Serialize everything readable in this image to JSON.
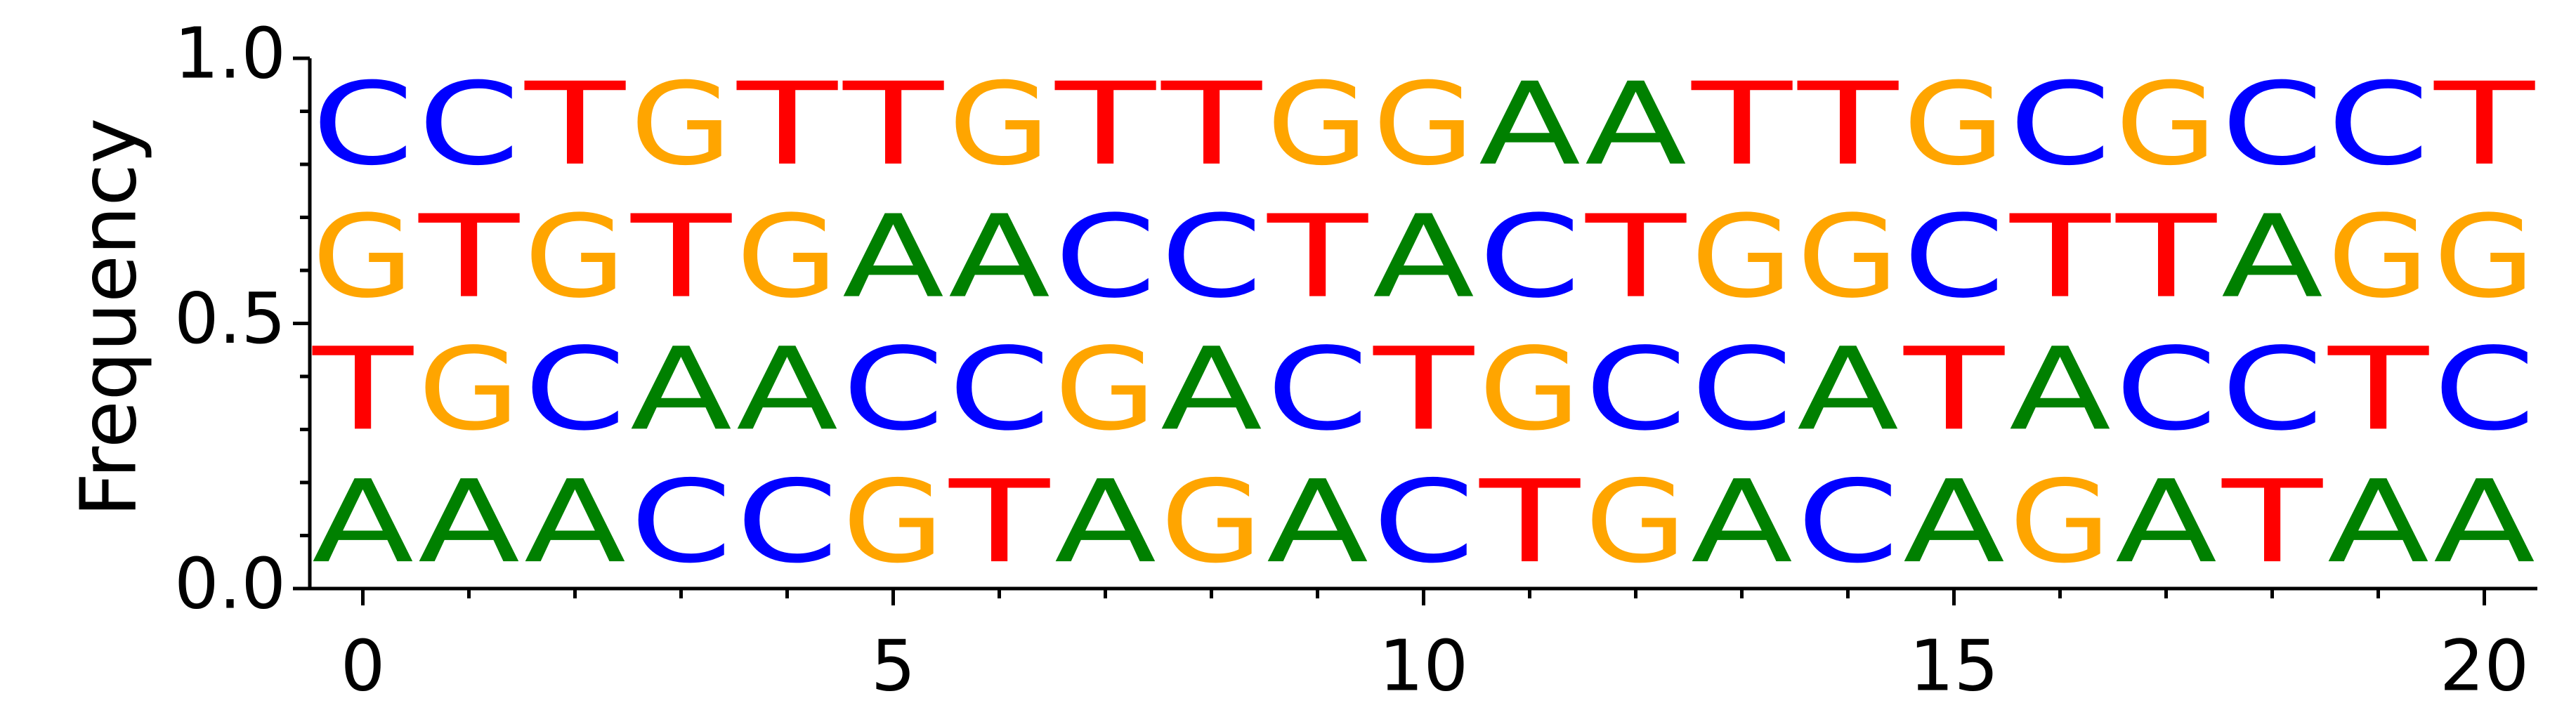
{
  "chart_data": {
    "type": "sequence-logo",
    "ylabel": "Frequency",
    "ylim": [
      0,
      1
    ],
    "xlim": [
      -0.5,
      20.5
    ],
    "y_ticks": [
      "0.0",
      "0.5",
      "1.0"
    ],
    "y_tick_values": [
      0,
      0.5,
      1
    ],
    "y_minor_tick_step": 0.1,
    "x_ticks": [
      "0",
      "5",
      "10",
      "15",
      "20"
    ],
    "x_tick_values": [
      0,
      5,
      10,
      15,
      20
    ],
    "x_minor_tick_step": 1,
    "colors": {
      "A": "#008000",
      "C": "#0000ff",
      "G": "#ffa500",
      "T": "#ff0000"
    },
    "positions": [
      {
        "x": 0,
        "stack": [
          {
            "base": "A",
            "freq": 0.25
          },
          {
            "base": "T",
            "freq": 0.25
          },
          {
            "base": "G",
            "freq": 0.25
          },
          {
            "base": "C",
            "freq": 0.25
          }
        ]
      },
      {
        "x": 1,
        "stack": [
          {
            "base": "A",
            "freq": 0.25
          },
          {
            "base": "G",
            "freq": 0.25
          },
          {
            "base": "T",
            "freq": 0.25
          },
          {
            "base": "C",
            "freq": 0.25
          }
        ]
      },
      {
        "x": 2,
        "stack": [
          {
            "base": "A",
            "freq": 0.25
          },
          {
            "base": "C",
            "freq": 0.25
          },
          {
            "base": "G",
            "freq": 0.25
          },
          {
            "base": "T",
            "freq": 0.25
          }
        ]
      },
      {
        "x": 3,
        "stack": [
          {
            "base": "C",
            "freq": 0.25
          },
          {
            "base": "A",
            "freq": 0.25
          },
          {
            "base": "T",
            "freq": 0.25
          },
          {
            "base": "G",
            "freq": 0.25
          }
        ]
      },
      {
        "x": 4,
        "stack": [
          {
            "base": "C",
            "freq": 0.25
          },
          {
            "base": "A",
            "freq": 0.25
          },
          {
            "base": "G",
            "freq": 0.25
          },
          {
            "base": "T",
            "freq": 0.25
          }
        ]
      },
      {
        "x": 5,
        "stack": [
          {
            "base": "G",
            "freq": 0.25
          },
          {
            "base": "C",
            "freq": 0.25
          },
          {
            "base": "A",
            "freq": 0.25
          },
          {
            "base": "T",
            "freq": 0.25
          }
        ]
      },
      {
        "x": 6,
        "stack": [
          {
            "base": "T",
            "freq": 0.25
          },
          {
            "base": "C",
            "freq": 0.25
          },
          {
            "base": "A",
            "freq": 0.25
          },
          {
            "base": "G",
            "freq": 0.25
          }
        ]
      },
      {
        "x": 7,
        "stack": [
          {
            "base": "A",
            "freq": 0.25
          },
          {
            "base": "G",
            "freq": 0.25
          },
          {
            "base": "C",
            "freq": 0.25
          },
          {
            "base": "T",
            "freq": 0.25
          }
        ]
      },
      {
        "x": 8,
        "stack": [
          {
            "base": "G",
            "freq": 0.25
          },
          {
            "base": "A",
            "freq": 0.25
          },
          {
            "base": "C",
            "freq": 0.25
          },
          {
            "base": "T",
            "freq": 0.25
          }
        ]
      },
      {
        "x": 9,
        "stack": [
          {
            "base": "A",
            "freq": 0.25
          },
          {
            "base": "C",
            "freq": 0.25
          },
          {
            "base": "T",
            "freq": 0.25
          },
          {
            "base": "G",
            "freq": 0.25
          }
        ]
      },
      {
        "x": 10,
        "stack": [
          {
            "base": "C",
            "freq": 0.25
          },
          {
            "base": "T",
            "freq": 0.25
          },
          {
            "base": "A",
            "freq": 0.25
          },
          {
            "base": "G",
            "freq": 0.25
          }
        ]
      },
      {
        "x": 11,
        "stack": [
          {
            "base": "T",
            "freq": 0.25
          },
          {
            "base": "G",
            "freq": 0.25
          },
          {
            "base": "C",
            "freq": 0.25
          },
          {
            "base": "A",
            "freq": 0.25
          }
        ]
      },
      {
        "x": 12,
        "stack": [
          {
            "base": "G",
            "freq": 0.25
          },
          {
            "base": "C",
            "freq": 0.25
          },
          {
            "base": "T",
            "freq": 0.25
          },
          {
            "base": "A",
            "freq": 0.25
          }
        ]
      },
      {
        "x": 13,
        "stack": [
          {
            "base": "A",
            "freq": 0.25
          },
          {
            "base": "C",
            "freq": 0.25
          },
          {
            "base": "G",
            "freq": 0.25
          },
          {
            "base": "T",
            "freq": 0.25
          }
        ]
      },
      {
        "x": 14,
        "stack": [
          {
            "base": "C",
            "freq": 0.25
          },
          {
            "base": "A",
            "freq": 0.25
          },
          {
            "base": "G",
            "freq": 0.25
          },
          {
            "base": "T",
            "freq": 0.25
          }
        ]
      },
      {
        "x": 15,
        "stack": [
          {
            "base": "A",
            "freq": 0.25
          },
          {
            "base": "T",
            "freq": 0.25
          },
          {
            "base": "C",
            "freq": 0.25
          },
          {
            "base": "G",
            "freq": 0.25
          }
        ]
      },
      {
        "x": 16,
        "stack": [
          {
            "base": "G",
            "freq": 0.25
          },
          {
            "base": "A",
            "freq": 0.25
          },
          {
            "base": "T",
            "freq": 0.25
          },
          {
            "base": "C",
            "freq": 0.25
          }
        ]
      },
      {
        "x": 17,
        "stack": [
          {
            "base": "A",
            "freq": 0.25
          },
          {
            "base": "C",
            "freq": 0.25
          },
          {
            "base": "T",
            "freq": 0.25
          },
          {
            "base": "G",
            "freq": 0.25
          }
        ]
      },
      {
        "x": 18,
        "stack": [
          {
            "base": "T",
            "freq": 0.25
          },
          {
            "base": "C",
            "freq": 0.25
          },
          {
            "base": "A",
            "freq": 0.25
          },
          {
            "base": "C",
            "freq": 0.25
          }
        ]
      },
      {
        "x": 19,
        "stack": [
          {
            "base": "A",
            "freq": 0.25
          },
          {
            "base": "T",
            "freq": 0.25
          },
          {
            "base": "G",
            "freq": 0.25
          },
          {
            "base": "C",
            "freq": 0.25
          }
        ]
      },
      {
        "x": 20,
        "stack": [
          {
            "base": "A",
            "freq": 0.25
          },
          {
            "base": "C",
            "freq": 0.25
          },
          {
            "base": "G",
            "freq": 0.25
          },
          {
            "base": "T",
            "freq": 0.25
          }
        ]
      }
    ]
  }
}
